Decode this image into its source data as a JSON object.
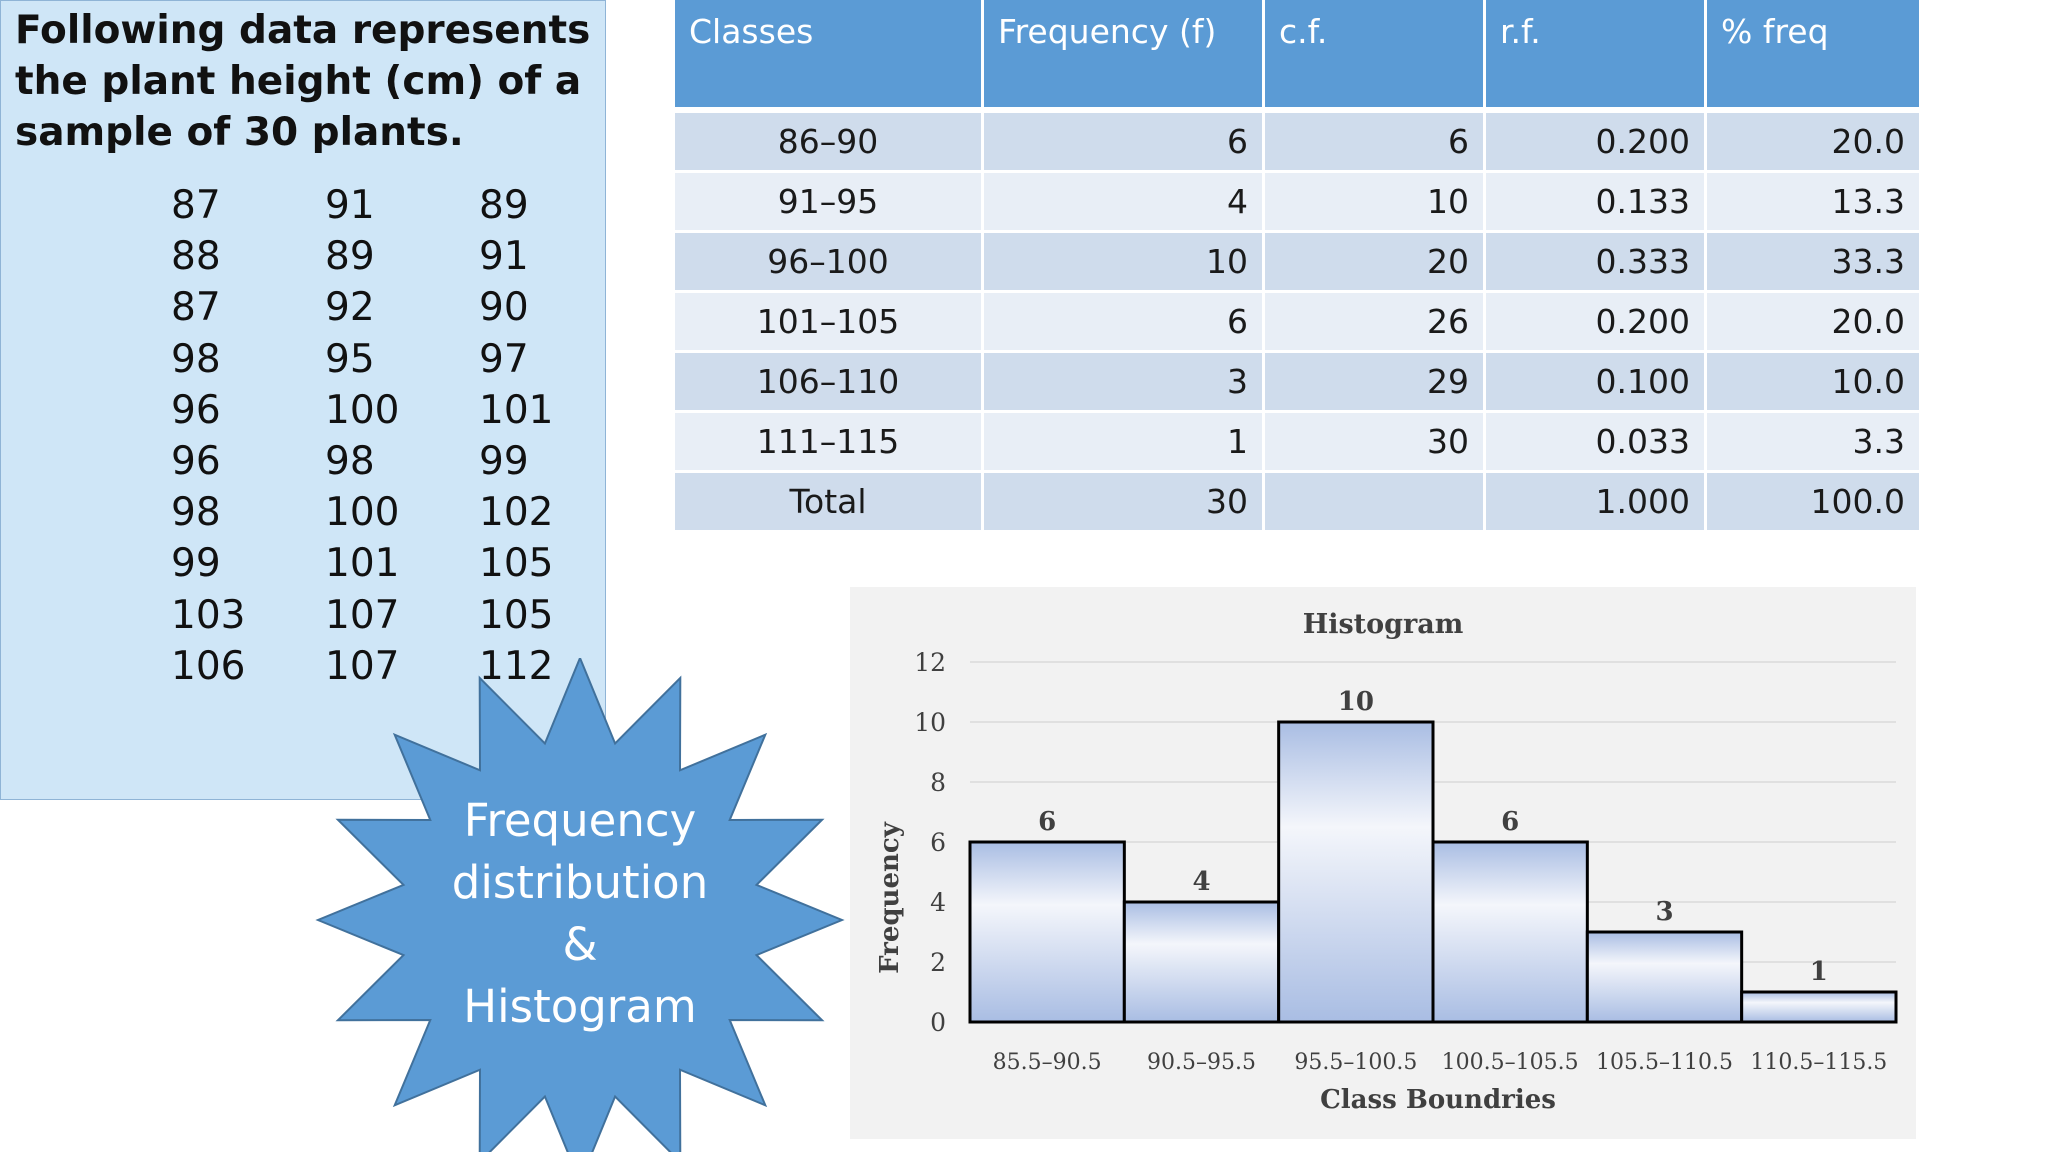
{
  "panel": {
    "title": "Following data represents the plant height (cm) of a sample of 30 plants.",
    "columns": [
      [
        "87",
        "88",
        "87",
        "98",
        "96",
        "96",
        "98",
        "99",
        "103",
        "106"
      ],
      [
        "91",
        "89",
        "92",
        "95",
        "100",
        "98",
        "100",
        "101",
        "107",
        "107"
      ],
      [
        "89",
        "91",
        "90",
        "97",
        "101",
        "99",
        "102",
        "105",
        "105",
        "112"
      ]
    ]
  },
  "table": {
    "headers": [
      "Classes",
      "Frequency (f)",
      "c.f.",
      "r.f.",
      "% freq"
    ],
    "rows": [
      [
        "86–90",
        "6",
        "6",
        "0.200",
        "20.0"
      ],
      [
        "91–95",
        "4",
        "10",
        "0.133",
        "13.3"
      ],
      [
        "96–100",
        "10",
        "20",
        "0.333",
        "33.3"
      ],
      [
        "101–105",
        "6",
        "26",
        "0.200",
        "20.0"
      ],
      [
        "106–110",
        "3",
        "29",
        "0.100",
        "10.0"
      ],
      [
        "111–115",
        "1",
        "30",
        "0.033",
        "3.3"
      ],
      [
        "Total",
        "30",
        "",
        "1.000",
        "100.0"
      ]
    ]
  },
  "star": {
    "lines": [
      "Frequency",
      "distribution",
      "&",
      "Histogram"
    ],
    "fill": "#5b9bd5",
    "stroke": "#41719c"
  },
  "chart_data": {
    "type": "bar",
    "title": "Histogram",
    "xlabel": "Class Boundries",
    "ylabel": "Frequency",
    "categories": [
      "85.5–90.5",
      "90.5–95.5",
      "95.5–100.5",
      "100.5–105.5",
      "105.5–110.5",
      "110.5–115.5"
    ],
    "values": [
      6,
      4,
      10,
      6,
      3,
      1
    ],
    "ylim": [
      0,
      12
    ],
    "yticks": [
      "0",
      "2",
      "4",
      "6",
      "8",
      "10",
      "12"
    ],
    "grid": true,
    "bar_color": "#a9bde3",
    "bar_highlight": "#f4f6fb"
  }
}
